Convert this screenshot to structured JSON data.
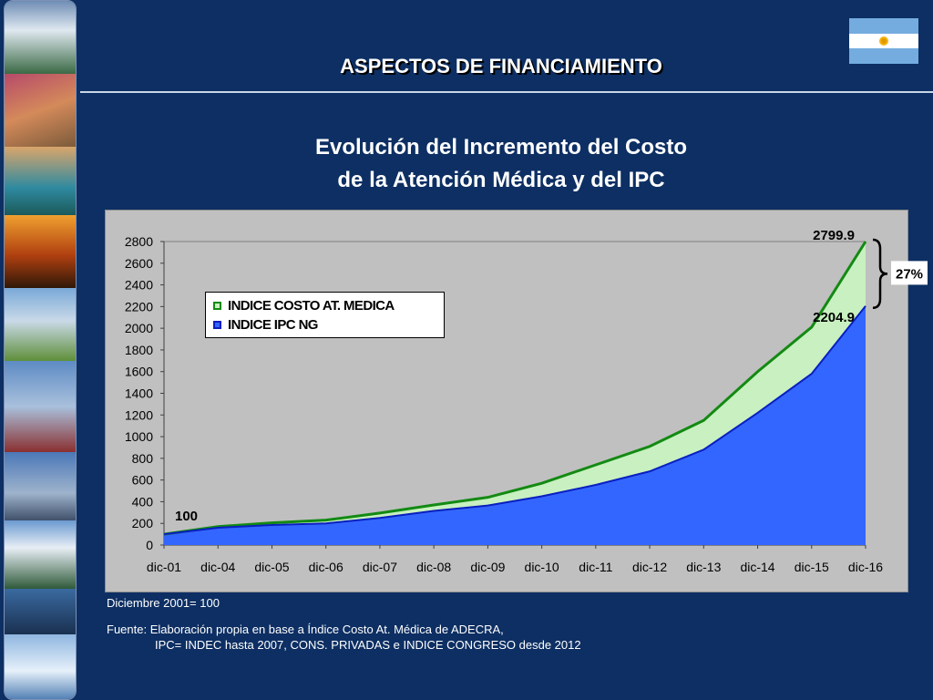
{
  "header": {
    "title": "ASPECTOS DE FINANCIAMIENTO"
  },
  "figure": {
    "title_line1": "Evolución del Incremento del Costo",
    "title_line2": "de la Atención Médica y del IPC"
  },
  "chart_data": {
    "type": "area",
    "categories": [
      "dic-01",
      "dic-04",
      "dic-05",
      "dic-06",
      "dic-07",
      "dic-08",
      "dic-09",
      "dic-10",
      "dic-11",
      "dic-12",
      "dic-13",
      "dic-14",
      "dic-15",
      "dic-16"
    ],
    "series": [
      {
        "name": "INDICE COSTO AT. MEDICA",
        "color": "#c8f0c0",
        "line_color": "#138a13",
        "values": [
          100,
          170,
          205,
          230,
          295,
          370,
          440,
          570,
          740,
          910,
          1150,
          1600,
          2010,
          2799.9
        ]
      },
      {
        "name": "INDICE IPC NG",
        "color": "#3366ff",
        "line_color": "#0a1fbf",
        "values": [
          100,
          160,
          185,
          200,
          250,
          315,
          365,
          450,
          555,
          680,
          880,
          1220,
          1580,
          2204.9
        ]
      }
    ],
    "ylim": [
      0,
      2800
    ],
    "yticks": [
      0,
      200,
      400,
      600,
      800,
      1000,
      1200,
      1400,
      1600,
      1800,
      2000,
      2200,
      2400,
      2600,
      2800
    ],
    "annotations": {
      "start": "100",
      "end_costo": "2799.9",
      "end_ipc": "2204.9",
      "difference": "27%"
    },
    "legend": "upper-left"
  },
  "notes": {
    "base": "Diciembre 2001= 100",
    "source_line1": "Fuente: Elaboración propia en base a  Índice Costo At. Médica de ADECRA,",
    "source_line2": "IPC= INDEC hasta 2007, CONS. PRIVADAS e INDICE CONGRESO desde 2012"
  },
  "colors": {
    "background": "#0d2f63",
    "plot_bg": "#c0c0c0"
  }
}
